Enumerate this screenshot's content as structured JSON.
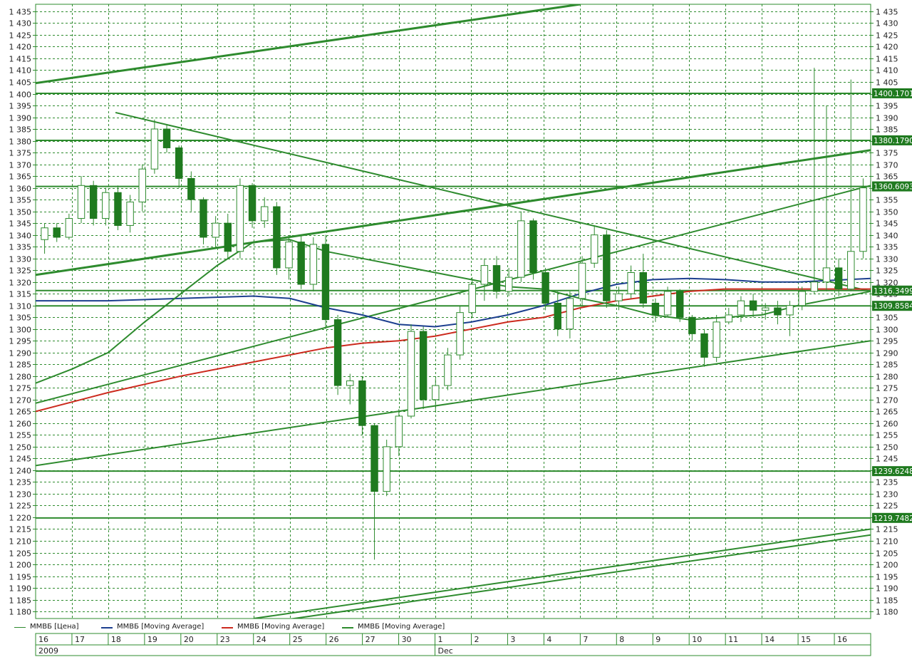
{
  "chart_data": {
    "type": "candlestick",
    "title": "",
    "y_axis": {
      "min": 1177,
      "max": 1438,
      "tick_step": 5,
      "ticks_left": true,
      "ticks_right": true
    },
    "grid": true,
    "x_axis": {
      "day_labels": [
        "16",
        "17",
        "18",
        "19",
        "20",
        "23",
        "24",
        "25",
        "26",
        "27",
        "30",
        "1",
        "2",
        "3",
        "4",
        "7",
        "8",
        "9",
        "10",
        "11",
        "14",
        "15",
        "16"
      ],
      "month_labels": [
        {
          "label": "2009",
          "day_index": 0
        },
        {
          "label": "Dec",
          "day_index": 11
        }
      ]
    },
    "price_labels": [
      {
        "value": 1400.1701,
        "text": "1400.1701"
      },
      {
        "value": 1380.179,
        "text": "1380.1790"
      },
      {
        "value": 1360.6093,
        "text": "1360.6093"
      },
      {
        "value": 1316.3499,
        "text": "1316.3499"
      },
      {
        "value": 1309.8584,
        "text": "1309.8584"
      },
      {
        "value": 1239.6248,
        "text": "1239.6248"
      },
      {
        "value": 1219.7482,
        "text": "1219.7482"
      }
    ],
    "trend_lines": [
      {
        "from": [
          0.0,
          1404.5
        ],
        "to": [
          15.0,
          1438.0
        ],
        "width": 3
      },
      {
        "from": [
          0.0,
          1323.0
        ],
        "to": [
          23.0,
          1376.0
        ],
        "width": 3
      },
      {
        "from": [
          0.0,
          1242.0
        ],
        "to": [
          23.0,
          1295.0
        ],
        "width": 2
      },
      {
        "from": [
          0.0,
          1268.5
        ],
        "to": [
          23.0,
          1361.0
        ],
        "width": 2
      },
      {
        "from": [
          2.2,
          1392.0
        ],
        "to": [
          23.0,
          1316.0
        ],
        "width": 2
      },
      {
        "from": [
          6.0,
          1177.0
        ],
        "to": [
          23.0,
          1215.0
        ],
        "width": 2
      },
      {
        "from": [
          6.0,
          1174.5
        ],
        "to": [
          23.0,
          1212.5
        ],
        "width": 2
      }
    ],
    "candles": [
      [
        1338,
        1345,
        1332,
        1343
      ],
      [
        1343,
        1345,
        1337,
        1339
      ],
      [
        1339,
        1349,
        1338,
        1347
      ],
      [
        1347,
        1365,
        1345,
        1361
      ],
      [
        1361,
        1363,
        1344,
        1347
      ],
      [
        1347,
        1360,
        1344,
        1358
      ],
      [
        1358,
        1361,
        1342,
        1344
      ],
      [
        1344,
        1357,
        1341,
        1354
      ],
      [
        1354,
        1370,
        1350,
        1368
      ],
      [
        1368,
        1389,
        1366,
        1385
      ],
      [
        1385,
        1387,
        1375,
        1377
      ],
      [
        1377,
        1378,
        1360,
        1364
      ],
      [
        1364,
        1367,
        1350,
        1355
      ],
      [
        1355,
        1356,
        1336,
        1339
      ],
      [
        1339,
        1348,
        1334,
        1345
      ],
      [
        1345,
        1349,
        1330,
        1333
      ],
      [
        1333,
        1364,
        1330,
        1361
      ],
      [
        1361,
        1362,
        1343,
        1346
      ],
      [
        1346,
        1356,
        1343,
        1352
      ],
      [
        1352,
        1354,
        1323,
        1326
      ],
      [
        1326,
        1339,
        1321,
        1337
      ],
      [
        1337,
        1340,
        1317,
        1319
      ],
      [
        1319,
        1339,
        1316,
        1336
      ],
      [
        1336,
        1340,
        1300,
        1304
      ],
      [
        1304,
        1306,
        1272,
        1276
      ],
      [
        1276,
        1281,
        1268,
        1278
      ],
      [
        1278,
        1280,
        1255,
        1259
      ],
      [
        1259,
        1260,
        1202,
        1231
      ],
      [
        1231,
        1253,
        1229,
        1250
      ],
      [
        1250,
        1266,
        1246,
        1263
      ],
      [
        1263,
        1302,
        1262,
        1299
      ],
      [
        1299,
        1301,
        1266,
        1270
      ],
      [
        1270,
        1279,
        1265,
        1276
      ],
      [
        1276,
        1292,
        1274,
        1289
      ],
      [
        1289,
        1310,
        1287,
        1307
      ],
      [
        1307,
        1322,
        1305,
        1319
      ],
      [
        1319,
        1330,
        1312,
        1327
      ],
      [
        1327,
        1331,
        1313,
        1316
      ],
      [
        1316,
        1326,
        1314,
        1322
      ],
      [
        1322,
        1350,
        1320,
        1346
      ],
      [
        1346,
        1347,
        1321,
        1324
      ],
      [
        1324,
        1326,
        1308,
        1311
      ],
      [
        1311,
        1316,
        1297,
        1300
      ],
      [
        1300,
        1316,
        1296,
        1313
      ],
      [
        1313,
        1331,
        1310,
        1328
      ],
      [
        1328,
        1344,
        1326,
        1340
      ],
      [
        1340,
        1342,
        1309,
        1312
      ],
      [
        1312,
        1318,
        1308,
        1315
      ],
      [
        1315,
        1327,
        1313,
        1324
      ],
      [
        1324,
        1332,
        1309,
        1311
      ],
      [
        1311,
        1313,
        1303,
        1306
      ],
      [
        1306,
        1318,
        1305,
        1316
      ],
      [
        1316,
        1317,
        1303,
        1305
      ],
      [
        1305,
        1306,
        1295,
        1298
      ],
      [
        1298,
        1300,
        1284,
        1288
      ],
      [
        1288,
        1306,
        1286,
        1303
      ],
      [
        1303,
        1309,
        1302,
        1306
      ],
      [
        1306,
        1314,
        1303,
        1312
      ],
      [
        1312,
        1315,
        1305,
        1308
      ],
      [
        1308,
        1311,
        1304,
        1309
      ],
      [
        1309,
        1312,
        1302,
        1306
      ],
      [
        1306,
        1312,
        1297,
        1310
      ],
      [
        1310,
        1318,
        1308,
        1316
      ],
      [
        1316,
        1411,
        1315,
        1320
      ],
      [
        1320,
        1395,
        1316,
        1326
      ],
      [
        1326,
        1330,
        1314,
        1317
      ],
      [
        1317,
        1406,
        1316,
        1333
      ],
      [
        1333,
        1364,
        1330,
        1360
      ]
    ],
    "series": [
      {
        "name": "ММВБ [Цена]",
        "color": "#2e8b2e",
        "kind": "price"
      },
      {
        "name": "ММВБ [Moving Average]",
        "color": "#1c3f8f",
        "kind": "ma",
        "points": [
          [
            0,
            1312
          ],
          [
            2,
            1312
          ],
          [
            4,
            1313
          ],
          [
            6,
            1314
          ],
          [
            7,
            1313
          ],
          [
            8,
            1309
          ],
          [
            9,
            1306
          ],
          [
            10,
            1302
          ],
          [
            11,
            1301
          ],
          [
            12,
            1303
          ],
          [
            13,
            1306
          ],
          [
            14,
            1310
          ],
          [
            15,
            1315
          ],
          [
            16,
            1319
          ],
          [
            17,
            1321
          ],
          [
            18,
            1321.5
          ],
          [
            19,
            1321
          ],
          [
            20,
            1320
          ],
          [
            21,
            1320
          ],
          [
            23,
            1321.5
          ]
        ]
      },
      {
        "name": "ММВБ [Moving Average]",
        "color": "#cc2a1e",
        "kind": "ma",
        "points": [
          [
            0,
            1265
          ],
          [
            2,
            1273
          ],
          [
            4,
            1280
          ],
          [
            6,
            1286
          ],
          [
            7,
            1289
          ],
          [
            8,
            1292
          ],
          [
            9,
            1294
          ],
          [
            10,
            1295
          ],
          [
            11,
            1297
          ],
          [
            12,
            1300
          ],
          [
            13,
            1303
          ],
          [
            14,
            1305
          ],
          [
            15,
            1309
          ],
          [
            16,
            1312
          ],
          [
            17,
            1314
          ],
          [
            18,
            1316
          ],
          [
            19,
            1317
          ],
          [
            20,
            1317
          ],
          [
            21,
            1317
          ],
          [
            23,
            1317
          ]
        ]
      },
      {
        "name": "ММВБ [Moving Average]",
        "color": "#2e8b2e",
        "kind": "ma",
        "points": [
          [
            0,
            1277
          ],
          [
            1,
            1283
          ],
          [
            2,
            1290
          ],
          [
            3,
            1303
          ],
          [
            4,
            1315
          ],
          [
            5,
            1327
          ],
          [
            6,
            1337
          ],
          [
            7,
            1338
          ],
          [
            8,
            1333
          ],
          [
            9,
            1330
          ],
          [
            10,
            1327
          ],
          [
            11,
            1324
          ],
          [
            12,
            1321
          ],
          [
            13,
            1318
          ],
          [
            14,
            1317
          ],
          [
            15,
            1313
          ],
          [
            16,
            1310
          ],
          [
            17,
            1306
          ],
          [
            18,
            1304
          ],
          [
            19,
            1305
          ],
          [
            20,
            1306
          ],
          [
            21,
            1310
          ],
          [
            22,
            1313
          ],
          [
            23,
            1316
          ]
        ]
      }
    ]
  },
  "legend": [
    {
      "label": "ММВБ [Цена]",
      "color": "#2e8b2e"
    },
    {
      "label": "ММВБ [Moving Average]",
      "color": "#1c3f8f"
    },
    {
      "label": "ММВБ [Moving Average]",
      "color": "#cc2a1e"
    },
    {
      "label": "ММВБ [Moving Average]",
      "color": "#2e8b2e"
    }
  ]
}
